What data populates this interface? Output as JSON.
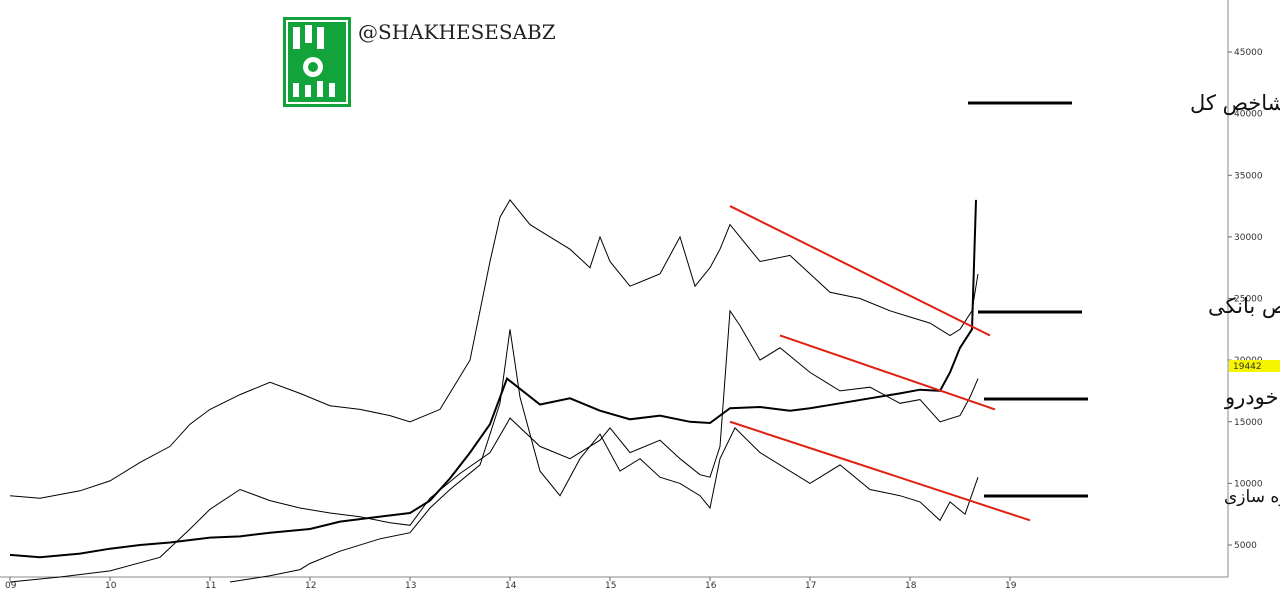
{
  "watermark": "@SHAKHESESABZ",
  "logo": {
    "name": "shakhes-sabz-logo",
    "color": "#12a33a"
  },
  "price_tag": {
    "value": "19442",
    "color": "#f5f500"
  },
  "chart_data": {
    "type": "line",
    "xaxis": {
      "ticks": [
        "09",
        "10",
        "11",
        "12",
        "13",
        "14",
        "15",
        "16",
        "17",
        "18",
        "19"
      ],
      "range": [
        9,
        22.2
      ]
    },
    "yaxis": {
      "ticks": [
        "5000",
        "10000",
        "15000",
        "20000",
        "25000",
        "30000",
        "35000",
        "40000",
        "45000"
      ],
      "range": [
        2500,
        48500
      ],
      "position": "right"
    },
    "grid": false,
    "series": [
      {
        "name": "شاخص کل",
        "color": "#000000",
        "points": [
          [
            9.0,
            4200
          ],
          [
            9.3,
            4000
          ],
          [
            9.7,
            4300
          ],
          [
            10.0,
            4700
          ],
          [
            10.3,
            5000
          ],
          [
            10.6,
            5200
          ],
          [
            11.0,
            5600
          ],
          [
            11.3,
            5700
          ],
          [
            11.6,
            6000
          ],
          [
            12.0,
            6300
          ],
          [
            12.3,
            6900
          ],
          [
            12.6,
            7200
          ],
          [
            13.0,
            7600
          ],
          [
            13.2,
            8600
          ],
          [
            13.4,
            10400
          ],
          [
            13.6,
            12500
          ],
          [
            13.8,
            14800
          ],
          [
            13.97,
            18500
          ],
          [
            14.3,
            16400
          ],
          [
            14.6,
            16900
          ],
          [
            14.9,
            15900
          ],
          [
            15.2,
            15200
          ],
          [
            15.5,
            15500
          ],
          [
            15.8,
            15000
          ],
          [
            16.0,
            14900
          ],
          [
            16.2,
            16100
          ],
          [
            16.5,
            16200
          ],
          [
            16.8,
            15900
          ],
          [
            17.0,
            16100
          ],
          [
            17.3,
            16500
          ],
          [
            17.6,
            16900
          ],
          [
            17.9,
            17300
          ],
          [
            18.1,
            17600
          ],
          [
            18.3,
            17500
          ],
          [
            18.4,
            19000
          ],
          [
            18.5,
            21000
          ],
          [
            18.62,
            22500
          ],
          [
            18.66,
            33000
          ]
        ]
      },
      {
        "name": "شاخص بانکی",
        "color": "#000000",
        "points": [
          [
            9.0,
            9000
          ],
          [
            9.3,
            8800
          ],
          [
            9.7,
            9400
          ],
          [
            10.0,
            10200
          ],
          [
            10.3,
            11700
          ],
          [
            10.6,
            13000
          ],
          [
            10.8,
            14800
          ],
          [
            11.0,
            16000
          ],
          [
            11.3,
            17200
          ],
          [
            11.6,
            18200
          ],
          [
            11.9,
            17300
          ],
          [
            12.2,
            16300
          ],
          [
            12.5,
            16000
          ],
          [
            12.8,
            15500
          ],
          [
            13.0,
            15000
          ],
          [
            13.3,
            16000
          ],
          [
            13.6,
            20000
          ],
          [
            13.8,
            28000
          ],
          [
            13.9,
            31600
          ],
          [
            14.0,
            33000
          ],
          [
            14.2,
            31000
          ],
          [
            14.4,
            30000
          ],
          [
            14.6,
            29000
          ],
          [
            14.8,
            27500
          ],
          [
            14.9,
            30000
          ],
          [
            15.0,
            28000
          ],
          [
            15.2,
            26000
          ],
          [
            15.5,
            27000
          ],
          [
            15.7,
            30000
          ],
          [
            15.85,
            26000
          ],
          [
            16.0,
            27500
          ],
          [
            16.1,
            29000
          ],
          [
            16.2,
            31000
          ],
          [
            16.3,
            30000
          ],
          [
            16.5,
            28000
          ],
          [
            16.8,
            28500
          ],
          [
            17.0,
            27000
          ],
          [
            17.2,
            25500
          ],
          [
            17.5,
            25000
          ],
          [
            17.8,
            24000
          ],
          [
            18.0,
            23500
          ],
          [
            18.2,
            23000
          ],
          [
            18.4,
            22000
          ],
          [
            18.5,
            22500
          ],
          [
            18.62,
            24000
          ],
          [
            18.68,
            27000
          ]
        ]
      },
      {
        "name": "شاخص خودرو",
        "color": "#000000",
        "points": [
          [
            9.0,
            2000
          ],
          [
            9.5,
            2400
          ],
          [
            10.0,
            2900
          ],
          [
            10.5,
            4000
          ],
          [
            10.8,
            6300
          ],
          [
            11.0,
            7900
          ],
          [
            11.3,
            9500
          ],
          [
            11.6,
            8600
          ],
          [
            11.9,
            8000
          ],
          [
            12.2,
            7600
          ],
          [
            12.5,
            7300
          ],
          [
            12.8,
            6800
          ],
          [
            13.0,
            6600
          ],
          [
            13.2,
            8800
          ],
          [
            13.5,
            10800
          ],
          [
            13.8,
            12500
          ],
          [
            14.0,
            15300
          ],
          [
            14.3,
            13000
          ],
          [
            14.6,
            12000
          ],
          [
            14.9,
            13500
          ],
          [
            15.0,
            14500
          ],
          [
            15.2,
            12500
          ],
          [
            15.5,
            13500
          ],
          [
            15.7,
            12000
          ],
          [
            15.9,
            10700
          ],
          [
            16.0,
            10500
          ],
          [
            16.1,
            13000
          ],
          [
            16.2,
            24000
          ],
          [
            16.3,
            22800
          ],
          [
            16.5,
            20000
          ],
          [
            16.7,
            21000
          ],
          [
            17.0,
            19000
          ],
          [
            17.3,
            17500
          ],
          [
            17.6,
            17800
          ],
          [
            17.9,
            16500
          ],
          [
            18.1,
            16800
          ],
          [
            18.3,
            15000
          ],
          [
            18.5,
            15500
          ],
          [
            18.6,
            17000
          ],
          [
            18.68,
            18500
          ]
        ]
      },
      {
        "name": "شاخص انبوه سازی",
        "color": "#000000",
        "points": [
          [
            11.2,
            2000
          ],
          [
            11.6,
            2500
          ],
          [
            11.9,
            3000
          ],
          [
            12.0,
            3500
          ],
          [
            12.3,
            4500
          ],
          [
            12.7,
            5500
          ],
          [
            13.0,
            6000
          ],
          [
            13.2,
            8000
          ],
          [
            13.4,
            9500
          ],
          [
            13.7,
            11500
          ],
          [
            13.9,
            16500
          ],
          [
            14.0,
            22500
          ],
          [
            14.1,
            17000
          ],
          [
            14.3,
            11000
          ],
          [
            14.5,
            9000
          ],
          [
            14.7,
            12000
          ],
          [
            14.9,
            14000
          ],
          [
            15.1,
            11000
          ],
          [
            15.3,
            12000
          ],
          [
            15.5,
            10500
          ],
          [
            15.7,
            10000
          ],
          [
            15.9,
            9000
          ],
          [
            16.0,
            8000
          ],
          [
            16.1,
            12000
          ],
          [
            16.25,
            14500
          ],
          [
            16.5,
            12500
          ],
          [
            16.8,
            11000
          ],
          [
            17.0,
            10000
          ],
          [
            17.3,
            11500
          ],
          [
            17.6,
            9500
          ],
          [
            17.9,
            9000
          ],
          [
            18.1,
            8500
          ],
          [
            18.3,
            7000
          ],
          [
            18.4,
            8500
          ],
          [
            18.55,
            7500
          ],
          [
            18.68,
            10500
          ]
        ]
      }
    ],
    "trendlines": [
      {
        "color": "#e02010",
        "from": [
          16.2,
          32500
        ],
        "to": [
          18.8,
          22000
        ]
      },
      {
        "color": "#e02010",
        "from": [
          16.7,
          22000
        ],
        "to": [
          18.85,
          16000
        ]
      },
      {
        "color": "#e02010",
        "from": [
          16.2,
          15000
        ],
        "to": [
          19.2,
          7000
        ]
      }
    ],
    "labels": [
      "شاخص کل",
      "شاخص بانکی",
      "شاخص خودرو",
      "شاخص انبوه سازی"
    ]
  }
}
